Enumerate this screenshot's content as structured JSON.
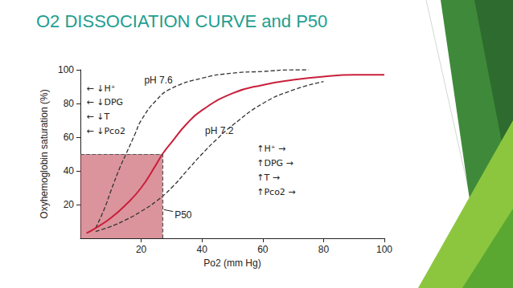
{
  "chart_data": {
    "type": "line",
    "title": "O2 DISSOCIATION CURVE and P50",
    "x_label": "Po2 (mm Hg)",
    "y_label": "Oxyhemoglobin saturation (%)",
    "xlim": [
      0,
      100
    ],
    "xticks": [
      20,
      40,
      60,
      80,
      100
    ],
    "ylim": [
      0,
      100
    ],
    "yticks": [
      20,
      40,
      60,
      80,
      100
    ],
    "grid": false,
    "series": [
      {
        "color": "#c8203c",
        "line_style": "solid",
        "marker": "none",
        "x": [
          2,
          5,
          10,
          15,
          20,
          25,
          27,
          30,
          35,
          40,
          50,
          60,
          70,
          80,
          90,
          100
        ],
        "values": [
          3,
          6,
          12,
          20,
          30,
          44,
          50,
          57,
          68,
          76,
          86,
          91,
          94,
          96,
          97,
          97
        ]
      },
      {
        "name": "pH 7.6",
        "color": "#333333",
        "line_style": "dashed",
        "marker": "none",
        "x": [
          5,
          8,
          10,
          13,
          15,
          18,
          20,
          25,
          30,
          40,
          50,
          60,
          70,
          75
        ],
        "values": [
          6,
          18,
          28,
          42,
          50,
          62,
          70,
          82,
          89,
          95,
          98,
          99,
          100,
          100
        ]
      },
      {
        "name": "pH 7.2",
        "color": "#333333",
        "line_style": "dashed",
        "marker": "none",
        "x": [
          5,
          10,
          15,
          20,
          25,
          30,
          35,
          40,
          45,
          50,
          60,
          70,
          80
        ],
        "values": [
          4,
          7,
          11,
          16,
          22,
          30,
          40,
          50,
          59,
          67,
          80,
          88,
          93
        ]
      }
    ],
    "p50": {
      "label": "P50",
      "po2": 27,
      "saturation": 50
    },
    "annotations": {
      "left": [
        "← ↓H⁺",
        "← ↓DPG",
        "← ↓T",
        "← ↓Pco2"
      ],
      "right": [
        "↑H⁺ →",
        "↑DPG →",
        "↑T →",
        "↑Pco2 →"
      ]
    }
  }
}
